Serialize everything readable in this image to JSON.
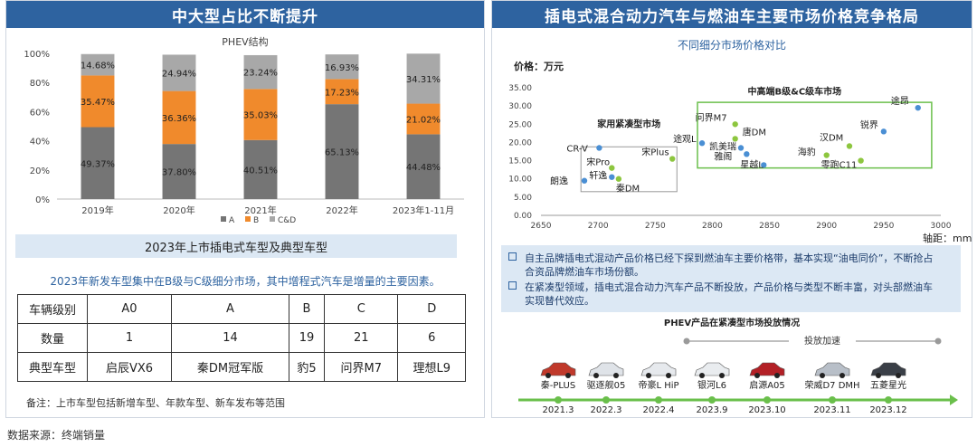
{
  "left_panel": {
    "title": "中大型占比不断提升",
    "section_title": "2023年上市插电式车型及典型车型",
    "description": "2023年新发车型集中在B级与C级细分市场，其中增程式汽车是增量的主要因素。",
    "table": {
      "rows": [
        {
          "header": "车辆级别",
          "cells": [
            "A0",
            "A",
            "B",
            "C",
            "D"
          ]
        },
        {
          "header": "数量",
          "cells": [
            "1",
            "14",
            "19",
            "21",
            "6"
          ]
        },
        {
          "header": "典型车型",
          "cells": [
            "启辰VX6",
            "秦DM冠军版",
            "豹5",
            "问界M7",
            "理想L9"
          ]
        }
      ]
    },
    "note": "备注：上市车型包括新增车型、年款车型、新车发布等范围"
  },
  "right_panel": {
    "title": "插电式混合动力汽车与燃油车主要市场价格竞争格局",
    "findings": [
      "自主品牌插电式混动产品价格已经下探到燃油车主要价格带，基本实现“油电同价”，不断抢占合资品牌燃油车市场份额。",
      "在紧凑型领域，插电式混合动力汽车产品不断投放，产品价格与类型不断丰富，对头部燃油车实现替代效应。"
    ],
    "timeline": {
      "title": "PHEV产品在紧凑型市场投放情况",
      "speedup_label": "投放加速",
      "cars": [
        {
          "name": "秦-PLUS",
          "color": "#c0392b"
        },
        {
          "name": "驱逐舰05",
          "color": "#dfe3e8"
        },
        {
          "name": "帝豪L HiP",
          "color": "#e6e9ed"
        },
        {
          "name": "银河L6",
          "color": "#e9ecef"
        },
        {
          "name": "启源A05",
          "color": "#b32026"
        },
        {
          "name": "荣威D7 DMH",
          "color": "#b8bfc8"
        },
        {
          "name": "五菱星光",
          "color": "#3a3f47"
        }
      ],
      "dates": [
        "2021.3",
        "2022.3",
        "2022.4",
        "2023.9",
        "2023.10",
        "2023.11",
        "2023.12"
      ]
    }
  },
  "source": "数据来源：终端销量",
  "colors": {
    "header_blue": "#2e63a0",
    "bar_a": "#757575",
    "bar_b": "#f08a2c",
    "bar_cd": "#a8a8a8",
    "dot_blue": "#4a8fd4",
    "dot_green": "#8dc63f",
    "arrow_green": "#6abf4b"
  },
  "chart_data": [
    {
      "type": "bar",
      "title": "PHEV结构",
      "categories": [
        "2019年",
        "2020年",
        "2021年",
        "2022年",
        "2023年1-11月"
      ],
      "series": [
        {
          "name": "A",
          "values": [
            49.37,
            37.8,
            40.51,
            65.13,
            44.48
          ],
          "labels": [
            "49.37%",
            "37.80%",
            "40.51%",
            "65.13%",
            "44.48%"
          ]
        },
        {
          "name": "B",
          "values": [
            35.47,
            36.36,
            35.03,
            17.23,
            21.02
          ],
          "labels": [
            "35.47%",
            "36.36%",
            "35.03%",
            "17.23%",
            "21.02%"
          ]
        },
        {
          "name": "C&D",
          "values": [
            14.68,
            24.94,
            23.24,
            16.93,
            34.31
          ],
          "labels": [
            "14.68%",
            "24.94%",
            "23.24%",
            "16.93%",
            "34.31%"
          ]
        }
      ],
      "stacked": true,
      "ylim": [
        0,
        100
      ],
      "ytick_labels": [
        "0%",
        "20%",
        "40%",
        "60%",
        "80%",
        "100%"
      ]
    },
    {
      "type": "scatter",
      "title": "不同细分市场价格对比",
      "ylabel": "价格：万元",
      "xlabel": "轴距：mm",
      "xlim": [
        2650,
        3000
      ],
      "ylim": [
        0,
        35
      ],
      "x_ticks": [
        2650,
        2700,
        2750,
        2800,
        2850,
        2900,
        2950,
        3000
      ],
      "y_tick_labels": [
        "0.00",
        "5.00",
        "10.00",
        "15.00",
        "20.00",
        "25.00",
        "30.00",
        "35.00"
      ],
      "groups": [
        {
          "label": "家用紧凑型市场"
        },
        {
          "label": "中高端B级&C级车市场"
        }
      ],
      "points": [
        {
          "label": "CR-V",
          "x": 2701,
          "y": 18.5,
          "series": "燃油车"
        },
        {
          "label": "宋Pro",
          "x": 2712,
          "y": 13,
          "series": "插电混动"
        },
        {
          "label": "轩逸",
          "x": 2712,
          "y": 10.5,
          "series": "燃油车"
        },
        {
          "label": "朗逸",
          "x": 2688,
          "y": 9.5,
          "series": "燃油车"
        },
        {
          "label": "秦DM",
          "x": 2718,
          "y": 10,
          "series": "插电混动"
        },
        {
          "label": "宋Plus",
          "x": 2765,
          "y": 15.5,
          "series": "插电混动"
        },
        {
          "label": "途观L",
          "x": 2791,
          "y": 19.8,
          "series": "燃油车"
        },
        {
          "label": "问界M7",
          "x": 2820,
          "y": 25,
          "series": "插电混动"
        },
        {
          "label": "唐DM",
          "x": 2820,
          "y": 21,
          "series": "插电混动"
        },
        {
          "label": "凯美瑞",
          "x": 2825,
          "y": 18.5,
          "series": "燃油车"
        },
        {
          "label": "雅阁",
          "x": 2830,
          "y": 16.8,
          "series": "燃油车"
        },
        {
          "label": "星越L",
          "x": 2845,
          "y": 13.8,
          "series": "燃油车"
        },
        {
          "label": "海豹",
          "x": 2900,
          "y": 16.5,
          "series": "插电混动"
        },
        {
          "label": "汉DM",
          "x": 2920,
          "y": 19,
          "series": "插电混动"
        },
        {
          "label": "零跑C11",
          "x": 2930,
          "y": 15,
          "series": "插电混动"
        },
        {
          "label": "锐界",
          "x": 2950,
          "y": 23,
          "series": "燃油车"
        },
        {
          "label": "途昂",
          "x": 2980,
          "y": 29.5,
          "series": "燃油车"
        }
      ]
    }
  ]
}
